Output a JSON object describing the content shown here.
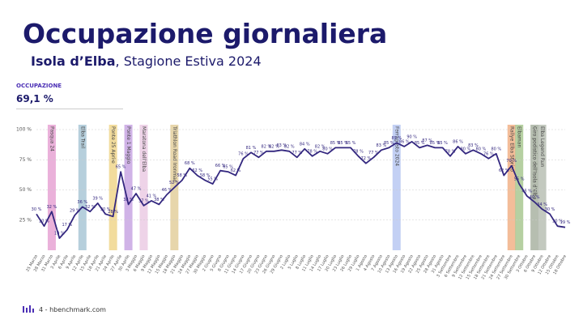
{
  "header": {
    "title": "Occupazione giornaliera",
    "subtitle_bold": "Isola d’Elba",
    "subtitle_rest": ", Stagione Estiva 2024"
  },
  "kpi": {
    "label": "OCCUPAZIONE",
    "value": "69,1 %"
  },
  "footer": {
    "text": "4 - hbenchmark.com"
  },
  "chart_data": {
    "type": "line",
    "color": "#33277f",
    "grid": true,
    "ylim": [
      0,
      100
    ],
    "yticks": [
      {
        "value": 25,
        "label": "25 %"
      },
      {
        "value": 50,
        "label": "50 %"
      },
      {
        "value": 75,
        "label": "75 %"
      },
      {
        "value": 100,
        "label": "100 %"
      }
    ],
    "categories": [
      "25 Marzo",
      "28 Marzo",
      "31 Marzo",
      "3 Aprile",
      "6 Aprile",
      "9 Aprile",
      "12 Aprile",
      "15 Aprile",
      "18 Aprile",
      "21 Aprile",
      "24 Aprile",
      "27 Aprile",
      "30 Aprile",
      "3 Maggio",
      "6 Maggio",
      "9 Maggio",
      "12 Maggio",
      "15 Maggio",
      "18 Maggio",
      "21 Maggio",
      "24 Maggio",
      "27 Maggio",
      "30 Maggio",
      "2 Giugno",
      "5 Giugno",
      "8 Giugno",
      "11 Giugno",
      "14 Giugno",
      "17 Giugno",
      "20 Giugno",
      "23 Giugno",
      "26 Giugno",
      "29 Giugno",
      "2 Luglio",
      "5 Luglio",
      "8 Luglio",
      "11 Luglio",
      "14 Luglio",
      "17 Luglio",
      "20 Luglio",
      "23 Luglio",
      "26 Luglio",
      "29 Luglio",
      "1 Agosto",
      "4 Agosto",
      "7 Agosto",
      "10 Agosto",
      "13 Agosto",
      "16 Agosto",
      "19 Agosto",
      "22 Agosto",
      "25 Agosto",
      "28 Agosto",
      "31 Agosto",
      "3 Settembre",
      "6 Settembre",
      "9 Settembre",
      "12 Settembre",
      "15 Settembre",
      "18 Settembre",
      "21 Settembre",
      "24 Settembre",
      "27 Settembre",
      "30 Settembre",
      "3 Ottobre",
      "6 Ottobre",
      "9 Ottobre",
      "12 Ottobre",
      "15 Ottobre",
      "18 Ottobre"
    ],
    "values": [
      30,
      20,
      32,
      10,
      17,
      29,
      36,
      32,
      39,
      30,
      28,
      65,
      38,
      47,
      37,
      41,
      38,
      46,
      52,
      58,
      68,
      62,
      58,
      55,
      66,
      65,
      62,
      76,
      81,
      77,
      82,
      82,
      83,
      82,
      77,
      84,
      78,
      82,
      80,
      85,
      85,
      85,
      78,
      72,
      77,
      83,
      85,
      89,
      86,
      90,
      85,
      87,
      85,
      85,
      78,
      86,
      80,
      83,
      80,
      76,
      80,
      62,
      70,
      55,
      45,
      40,
      34,
      30,
      20,
      19
    ],
    "value_labels": [
      "30 %",
      "20 %",
      "32 %",
      "10 %",
      "17 %",
      "29 %",
      "36 %",
      "32 %",
      "39 %",
      "30 %",
      "28 %",
      "65 %",
      "38 %",
      "47 %",
      "37 %",
      "41 %",
      "38 %",
      "46 %",
      "52 %",
      "58 %",
      "68 %",
      "62 %",
      "58 %",
      "55 %",
      "66 %",
      "65 %",
      "62 %",
      "76 %",
      "81 %",
      "77 %",
      "82 %",
      "82 %",
      "83 %",
      "82 %",
      "77 %",
      "84 %",
      "78 %",
      "82 %",
      "80 %",
      "85 %",
      "85 %",
      "85 %",
      "78 %",
      "72 %",
      "77 %",
      "83 %",
      "85 %",
      "89 %",
      "86 %",
      "90 %",
      "85 %",
      "87 %",
      "85 %",
      "85 %",
      "78 %",
      "86 %",
      "80 %",
      "83 %",
      "80 %",
      "76 %",
      "80 %",
      "62 %",
      "70 %",
      "55 %",
      "45 %",
      "40 %",
      "34 %",
      "30 %",
      "20 %",
      "19 %"
    ],
    "events": [
      {
        "label": "Pasqua 24",
        "x": "31 Marzo",
        "color": "#e6a3d4"
      },
      {
        "label": "Elba Trail",
        "x": "12 Aprile",
        "color": "#a9c7d6"
      },
      {
        "label": "Ponte 25 Aprile",
        "x": "24 Aprile",
        "color": "#f0d68c"
      },
      {
        "label": "Ponte 1 Maggio",
        "x": "30 Aprile",
        "color": "#c8a6e3"
      },
      {
        "label": "Maratona dell’Elba",
        "x": "6 Maggio",
        "color": "#ebcbe4"
      },
      {
        "label": "Triathlon Road Ironman",
        "x": "18 Maggio",
        "color": "#e3cf9c"
      },
      {
        "label": "Ferragosto 2024",
        "x": "13 Agosto",
        "color": "#b9c8f2"
      },
      {
        "label": "Rallye Elba Storico",
        "x": "27 Settembre",
        "color": "#f1b287"
      },
      {
        "label": "Elbaman",
        "x": "30 Settembre",
        "color": "#a9c892"
      },
      {
        "label": "Giro podistico dell’Isola d’Elba",
        "x": "6 Ottobre",
        "color": "#a9b3a2"
      },
      {
        "label": "Elba Legend Run",
        "x": "9 Ottobre",
        "color": "#b9c0b4"
      }
    ]
  }
}
